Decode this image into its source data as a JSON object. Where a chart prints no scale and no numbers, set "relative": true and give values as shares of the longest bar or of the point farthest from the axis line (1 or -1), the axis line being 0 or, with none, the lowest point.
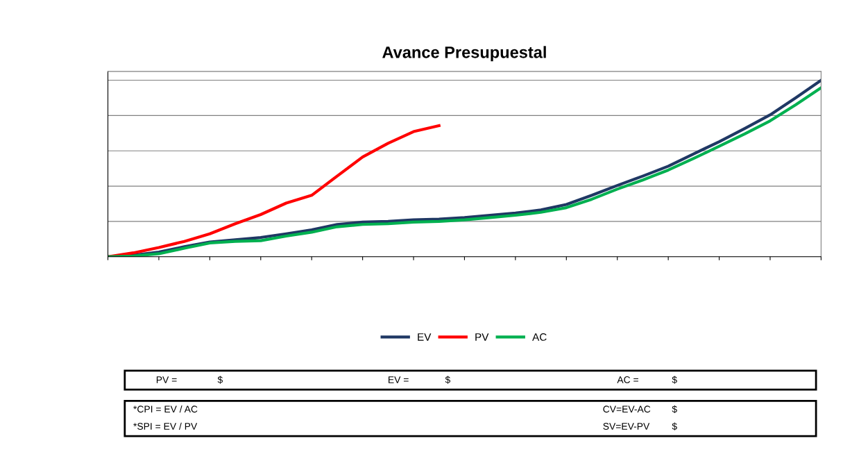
{
  "chart_data": {
    "type": "line",
    "title": "Avance Presupuestal",
    "relative": true,
    "grid": "y",
    "legend": "bottom",
    "marker": "none",
    "line_style": "solid",
    "categories": [
      null,
      null,
      null,
      null,
      null,
      null,
      null,
      null,
      null,
      null,
      null,
      null,
      null,
      null,
      null,
      null,
      null,
      null,
      null,
      null,
      null,
      null,
      null,
      null,
      null,
      null,
      null,
      null,
      null
    ],
    "series": [
      {
        "name": "EV",
        "color": "#1f3864",
        "values": [
          0,
          0.009,
          0.026,
          0.057,
          0.083,
          0.096,
          0.109,
          0.13,
          0.152,
          0.183,
          0.196,
          0.2,
          0.209,
          0.213,
          0.222,
          0.235,
          0.248,
          0.265,
          0.296,
          0.348,
          0.404,
          0.457,
          0.513,
          0.583,
          0.652,
          0.726,
          0.804,
          0.9,
          1.0
        ]
      },
      {
        "name": "PV",
        "color": "#ff0000",
        "values": [
          0,
          0.022,
          0.052,
          0.087,
          0.13,
          0.187,
          0.239,
          0.304,
          0.348,
          0.457,
          0.565,
          0.643,
          0.709,
          0.743,
          null,
          null,
          null,
          null,
          null,
          null,
          null,
          null,
          null,
          null,
          null,
          null,
          null,
          null,
          null
        ]
      },
      {
        "name": "AC",
        "color": "#00b050",
        "values": [
          0,
          0.004,
          0.017,
          0.048,
          0.078,
          0.087,
          0.091,
          0.117,
          0.139,
          0.17,
          0.183,
          0.187,
          0.196,
          0.2,
          0.209,
          0.222,
          0.235,
          0.252,
          0.278,
          0.326,
          0.383,
          0.435,
          0.491,
          0.557,
          0.626,
          0.696,
          0.77,
          0.861,
          0.957
        ]
      }
    ],
    "annotations": [
      "PV =",
      "$",
      "EV =",
      "$",
      "AC =",
      "$",
      "*CPI = EV / AC",
      "*SPI = EV / PV",
      "CV=EV-AC",
      "$",
      "SV=EV-PV",
      "$"
    ]
  }
}
